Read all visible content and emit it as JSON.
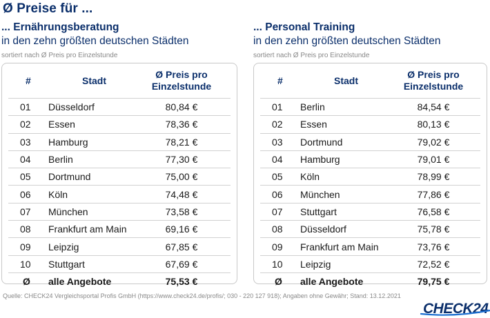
{
  "main_title": "Ø Preise für ...",
  "left": {
    "title": "... Ernährungsberatung",
    "subtitle": "in den zehn größten deutschen Städten",
    "sort_note": "sortiert nach Ø Preis pro Einzelstunde",
    "headers": {
      "num": "#",
      "city": "Stadt",
      "price_line1": "Ø Preis pro",
      "price_line2": "Einzelstunde"
    },
    "rows": [
      {
        "num": "01",
        "city": "Düsseldorf",
        "price": "80,84 €"
      },
      {
        "num": "02",
        "city": "Essen",
        "price": "78,36 €"
      },
      {
        "num": "03",
        "city": "Hamburg",
        "price": "78,21 €"
      },
      {
        "num": "04",
        "city": "Berlin",
        "price": "77,30 €"
      },
      {
        "num": "05",
        "city": "Dortmund",
        "price": "75,00 €"
      },
      {
        "num": "06",
        "city": "Köln",
        "price": "74,48 €"
      },
      {
        "num": "07",
        "city": "München",
        "price": "73,58 €"
      },
      {
        "num": "08",
        "city": "Frankfurt am Main",
        "price": "69,16 €"
      },
      {
        "num": "09",
        "city": "Leipzig",
        "price": "67,85 €"
      },
      {
        "num": "10",
        "city": "Stuttgart",
        "price": "67,69 €"
      }
    ],
    "average": {
      "num": "Ø",
      "city": "alle Angebote",
      "price": "75,53 €"
    }
  },
  "right": {
    "title": "... Personal Training",
    "subtitle": "in den zehn größten deutschen Städten",
    "sort_note": "sortiert nach Ø Preis pro Einzelstunde",
    "headers": {
      "num": "#",
      "city": "Stadt",
      "price_line1": "Ø Preis pro",
      "price_line2": "Einzelstunde"
    },
    "rows": [
      {
        "num": "01",
        "city": "Berlin",
        "price": "84,54 €"
      },
      {
        "num": "02",
        "city": "Essen",
        "price": "80,13 €"
      },
      {
        "num": "03",
        "city": "Dortmund",
        "price": "79,02 €"
      },
      {
        "num": "04",
        "city": "Hamburg",
        "price": "79,01 €"
      },
      {
        "num": "05",
        "city": "Köln",
        "price": "78,99 €"
      },
      {
        "num": "06",
        "city": "München",
        "price": "77,86 €"
      },
      {
        "num": "07",
        "city": "Stuttgart",
        "price": "76,58 €"
      },
      {
        "num": "08",
        "city": "Düsseldorf",
        "price": "75,78 €"
      },
      {
        "num": "09",
        "city": "Frankfurt am Main",
        "price": "73,76 €"
      },
      {
        "num": "10",
        "city": "Leipzig",
        "price": "72,52 €"
      }
    ],
    "average": {
      "num": "Ø",
      "city": "alle Angebote",
      "price": "79,75 €"
    }
  },
  "source": "Quelle: CHECK24 Vergleichsportal Profis GmbH (https://www.check24.de/profis/;  030 - 220 127 918); Angaben ohne Gewähr; Stand: 13.12.2021",
  "logo_text": "CHECK24",
  "colors": {
    "brand_navy": "#0b2f6b",
    "logo_swoosh": "#1c6fd1",
    "text": "#1a1a1a",
    "muted": "#888888",
    "border": "#c8c8c8"
  }
}
